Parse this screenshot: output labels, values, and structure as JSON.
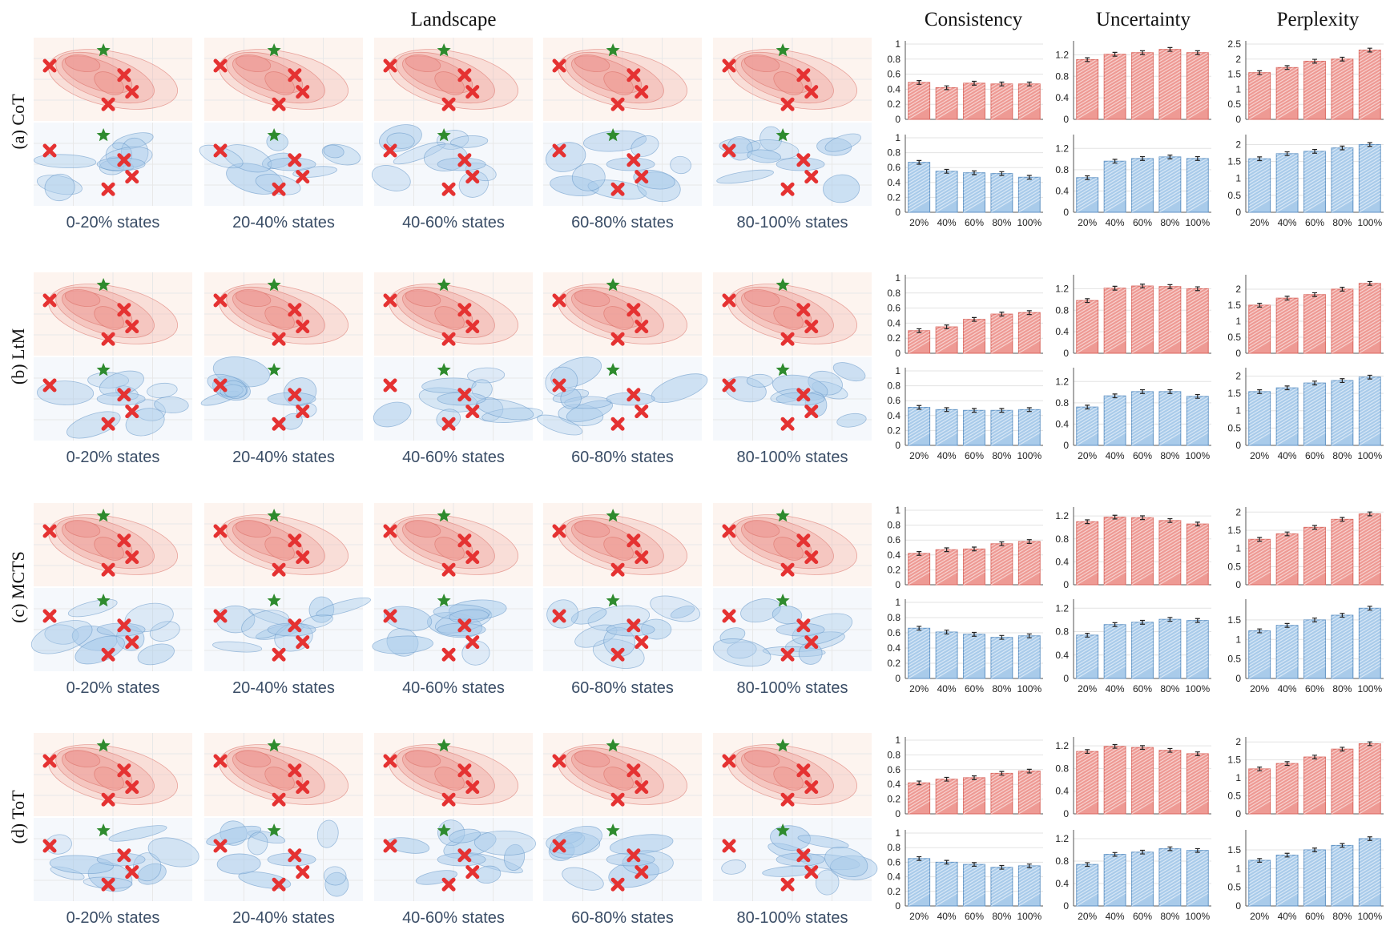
{
  "headers": {
    "landscape": "Landscape",
    "consistency": "Consistency",
    "uncertainty": "Uncertainty",
    "perplexity": "Perplexity"
  },
  "colors": {
    "red_fill": "#ee9a94",
    "red_stroke": "#d9675f",
    "red_bg": "#fdf4ef",
    "blue_fill": "#a9cbea",
    "blue_stroke": "#5f92c4",
    "blue_bg": "#f5f8fc",
    "cross": "#e53232",
    "star": "#2e8b2e",
    "label": "#3a4d66"
  },
  "state_labels": [
    "0-20% states",
    "20-40% states",
    "40-60% states",
    "60-80% states",
    "80-100% states"
  ],
  "x_categories": [
    "20%",
    "40%",
    "60%",
    "80%",
    "100%"
  ],
  "rows": [
    {
      "label": "(a) CoT"
    },
    {
      "label": "(b) LtM"
    },
    {
      "label": "(c) MCTS"
    },
    {
      "label": "(d) ToT"
    }
  ],
  "chart_data": [
    {
      "type": "bar",
      "method": "(a) CoT",
      "metric": "Consistency",
      "series": "red",
      "categories": [
        "20%",
        "40%",
        "60%",
        "80%",
        "100%"
      ],
      "values": [
        0.49,
        0.42,
        0.48,
        0.47,
        0.47
      ],
      "ylim": [
        0,
        1
      ],
      "yticks": [
        "0",
        "0.2",
        "0.4",
        "0.6",
        "0.8",
        "1"
      ],
      "ytick_values": [
        0,
        0.2,
        0.4,
        0.6,
        0.8,
        1
      ],
      "xlabels": false
    },
    {
      "type": "bar",
      "method": "(a) CoT",
      "metric": "Uncertainty",
      "series": "red",
      "categories": [
        "20%",
        "40%",
        "60%",
        "80%",
        "100%"
      ],
      "values": [
        1.11,
        1.21,
        1.24,
        1.3,
        1.24
      ],
      "ylim": [
        0,
        1.4
      ],
      "yticks": [
        "0",
        "0.4",
        "0.8",
        "1.2"
      ],
      "ytick_values": [
        0,
        0.4,
        0.8,
        1.2
      ],
      "xlabels": false
    },
    {
      "type": "bar",
      "method": "(a) CoT",
      "metric": "Perplexity",
      "series": "red",
      "categories": [
        "20%",
        "40%",
        "60%",
        "80%",
        "100%"
      ],
      "values": [
        1.55,
        1.72,
        1.93,
        2.0,
        2.3
      ],
      "ylim": [
        0,
        2.5
      ],
      "yticks": [
        "0",
        "0.5",
        "1",
        "1.5",
        "2",
        "2.5"
      ],
      "ytick_values": [
        0,
        0.5,
        1,
        1.5,
        2,
        2.5
      ],
      "xlabels": false
    },
    {
      "type": "bar",
      "method": "(a) CoT",
      "metric": "Consistency",
      "series": "blue",
      "categories": [
        "20%",
        "40%",
        "60%",
        "80%",
        "100%"
      ],
      "values": [
        0.67,
        0.55,
        0.53,
        0.52,
        0.47
      ],
      "ylim": [
        0,
        1
      ],
      "yticks": [
        "0",
        "0.2",
        "0.4",
        "0.6",
        "0.8",
        "1"
      ],
      "ytick_values": [
        0,
        0.2,
        0.4,
        0.6,
        0.8,
        1
      ],
      "xlabels": true
    },
    {
      "type": "bar",
      "method": "(a) CoT",
      "metric": "Uncertainty",
      "series": "blue",
      "categories": [
        "20%",
        "40%",
        "60%",
        "80%",
        "100%"
      ],
      "values": [
        0.65,
        0.96,
        1.01,
        1.04,
        1.01
      ],
      "ylim": [
        0,
        1.4
      ],
      "yticks": [
        "0",
        "0.4",
        "0.8",
        "1.2"
      ],
      "ytick_values": [
        0,
        0.4,
        0.8,
        1.2
      ],
      "xlabels": true
    },
    {
      "type": "bar",
      "method": "(a) CoT",
      "metric": "Perplexity",
      "series": "blue",
      "categories": [
        "20%",
        "40%",
        "60%",
        "80%",
        "100%"
      ],
      "values": [
        1.58,
        1.73,
        1.8,
        1.9,
        2.0
      ],
      "ylim": [
        0,
        2.2
      ],
      "yticks": [
        "0",
        "0.5",
        "1",
        "1.5",
        "2"
      ],
      "ytick_values": [
        0,
        0.5,
        1,
        1.5,
        2
      ],
      "xlabels": true
    },
    {
      "type": "bar",
      "method": "(b) LtM",
      "metric": "Consistency",
      "series": "red",
      "categories": [
        "20%",
        "40%",
        "60%",
        "80%",
        "100%"
      ],
      "values": [
        0.3,
        0.35,
        0.45,
        0.52,
        0.54
      ],
      "ylim": [
        0,
        1
      ],
      "yticks": [
        "0",
        "0.2",
        "0.4",
        "0.6",
        "0.8",
        "1"
      ],
      "ytick_values": [
        0,
        0.2,
        0.4,
        0.6,
        0.8,
        1
      ],
      "xlabels": false
    },
    {
      "type": "bar",
      "method": "(b) LtM",
      "metric": "Uncertainty",
      "series": "red",
      "categories": [
        "20%",
        "40%",
        "60%",
        "80%",
        "100%"
      ],
      "values": [
        0.98,
        1.21,
        1.25,
        1.24,
        1.2
      ],
      "ylim": [
        0,
        1.4
      ],
      "yticks": [
        "0",
        "0.4",
        "0.8",
        "1.2"
      ],
      "ytick_values": [
        0,
        0.4,
        0.8,
        1.2
      ],
      "xlabels": false
    },
    {
      "type": "bar",
      "method": "(b) LtM",
      "metric": "Perplexity",
      "series": "red",
      "categories": [
        "20%",
        "40%",
        "60%",
        "80%",
        "100%"
      ],
      "values": [
        1.5,
        1.72,
        1.83,
        2.0,
        2.18
      ],
      "ylim": [
        0,
        2.35
      ],
      "yticks": [
        "0",
        "0.5",
        "1",
        "1.5",
        "2"
      ],
      "ytick_values": [
        0,
        0.5,
        1,
        1.5,
        2
      ],
      "xlabels": false
    },
    {
      "type": "bar",
      "method": "(b) LtM",
      "metric": "Consistency",
      "series": "blue",
      "categories": [
        "20%",
        "40%",
        "60%",
        "80%",
        "100%"
      ],
      "values": [
        0.51,
        0.48,
        0.47,
        0.47,
        0.48
      ],
      "ylim": [
        0,
        1
      ],
      "yticks": [
        "0",
        "0.2",
        "0.4",
        "0.6",
        "0.8",
        "1"
      ],
      "ytick_values": [
        0,
        0.2,
        0.4,
        0.6,
        0.8,
        1
      ],
      "xlabels": true
    },
    {
      "type": "bar",
      "method": "(b) LtM",
      "metric": "Uncertainty",
      "series": "blue",
      "categories": [
        "20%",
        "40%",
        "60%",
        "80%",
        "100%"
      ],
      "values": [
        0.72,
        0.93,
        1.01,
        1.01,
        0.92
      ],
      "ylim": [
        0,
        1.4
      ],
      "yticks": [
        "0",
        "0.4",
        "0.8",
        "1.2"
      ],
      "ytick_values": [
        0,
        0.4,
        0.8,
        1.2
      ],
      "xlabels": true
    },
    {
      "type": "bar",
      "method": "(b) LtM",
      "metric": "Perplexity",
      "series": "blue",
      "categories": [
        "20%",
        "40%",
        "60%",
        "80%",
        "100%"
      ],
      "values": [
        1.55,
        1.66,
        1.8,
        1.87,
        1.97
      ],
      "ylim": [
        0,
        2.15
      ],
      "yticks": [
        "0",
        "0.5",
        "1",
        "1.5",
        "2"
      ],
      "ytick_values": [
        0,
        0.5,
        1,
        1.5,
        2
      ],
      "xlabels": true
    },
    {
      "type": "bar",
      "method": "(c) MCTS",
      "metric": "Consistency",
      "series": "red",
      "categories": [
        "20%",
        "40%",
        "60%",
        "80%",
        "100%"
      ],
      "values": [
        0.42,
        0.47,
        0.48,
        0.55,
        0.58
      ],
      "ylim": [
        0,
        1
      ],
      "yticks": [
        "0",
        "0.2",
        "0.4",
        "0.6",
        "0.8",
        "1"
      ],
      "ytick_values": [
        0,
        0.2,
        0.4,
        0.6,
        0.8,
        1
      ],
      "xlabels": false
    },
    {
      "type": "bar",
      "method": "(c) MCTS",
      "metric": "Uncertainty",
      "series": "red",
      "categories": [
        "20%",
        "40%",
        "60%",
        "80%",
        "100%"
      ],
      "values": [
        1.1,
        1.18,
        1.17,
        1.12,
        1.06
      ],
      "ylim": [
        0,
        1.3
      ],
      "yticks": [
        "0",
        "0.4",
        "0.8",
        "1.2"
      ],
      "ytick_values": [
        0,
        0.4,
        0.8,
        1.2
      ],
      "xlabels": false
    },
    {
      "type": "bar",
      "method": "(c) MCTS",
      "metric": "Perplexity",
      "series": "red",
      "categories": [
        "20%",
        "40%",
        "60%",
        "80%",
        "100%"
      ],
      "values": [
        1.25,
        1.4,
        1.58,
        1.8,
        1.95
      ],
      "ylim": [
        0,
        2.05
      ],
      "yticks": [
        "0",
        "0.5",
        "1",
        "1.5",
        "2"
      ],
      "ytick_values": [
        0,
        0.5,
        1,
        1.5,
        2
      ],
      "xlabels": false
    },
    {
      "type": "bar",
      "method": "(c) MCTS",
      "metric": "Consistency",
      "series": "blue",
      "categories": [
        "20%",
        "40%",
        "60%",
        "80%",
        "100%"
      ],
      "values": [
        0.66,
        0.61,
        0.58,
        0.54,
        0.56
      ],
      "ylim": [
        0,
        1
      ],
      "yticks": [
        "0",
        "0.2",
        "0.4",
        "0.6",
        "0.8",
        "1"
      ],
      "ytick_values": [
        0,
        0.2,
        0.4,
        0.6,
        0.8,
        1
      ],
      "xlabels": true
    },
    {
      "type": "bar",
      "method": "(c) MCTS",
      "metric": "Uncertainty",
      "series": "blue",
      "categories": [
        "20%",
        "40%",
        "60%",
        "80%",
        "100%"
      ],
      "values": [
        0.74,
        0.92,
        0.96,
        1.01,
        0.99
      ],
      "ylim": [
        0,
        1.3
      ],
      "yticks": [
        "0",
        "0.4",
        "0.8",
        "1.2"
      ],
      "ytick_values": [
        0,
        0.4,
        0.8,
        1.2
      ],
      "xlabels": true
    },
    {
      "type": "bar",
      "method": "(c) MCTS",
      "metric": "Perplexity",
      "series": "blue",
      "categories": [
        "20%",
        "40%",
        "60%",
        "80%",
        "100%"
      ],
      "values": [
        1.22,
        1.36,
        1.5,
        1.62,
        1.8
      ],
      "ylim": [
        0,
        1.95
      ],
      "yticks": [
        "0",
        "0.5",
        "1",
        "1.5"
      ],
      "ytick_values": [
        0,
        0.5,
        1,
        1.5
      ],
      "xlabels": true
    },
    {
      "type": "bar",
      "method": "(d) ToT",
      "metric": "Consistency",
      "series": "red",
      "categories": [
        "20%",
        "40%",
        "60%",
        "80%",
        "100%"
      ],
      "values": [
        0.42,
        0.47,
        0.49,
        0.55,
        0.58
      ],
      "ylim": [
        0,
        1
      ],
      "yticks": [
        "0",
        "0.2",
        "0.4",
        "0.6",
        "0.8",
        "1"
      ],
      "ytick_values": [
        0,
        0.2,
        0.4,
        0.6,
        0.8,
        1
      ],
      "xlabels": false
    },
    {
      "type": "bar",
      "method": "(d) ToT",
      "metric": "Uncertainty",
      "series": "red",
      "categories": [
        "20%",
        "40%",
        "60%",
        "80%",
        "100%"
      ],
      "values": [
        1.1,
        1.19,
        1.17,
        1.12,
        1.06
      ],
      "ylim": [
        0,
        1.3
      ],
      "yticks": [
        "0",
        "0.4",
        "0.8",
        "1.2"
      ],
      "ytick_values": [
        0,
        0.4,
        0.8,
        1.2
      ],
      "xlabels": false
    },
    {
      "type": "bar",
      "method": "(d) ToT",
      "metric": "Perplexity",
      "series": "red",
      "categories": [
        "20%",
        "40%",
        "60%",
        "80%",
        "100%"
      ],
      "values": [
        1.25,
        1.4,
        1.58,
        1.8,
        1.95
      ],
      "ylim": [
        0,
        2.05
      ],
      "yticks": [
        "0",
        "0.5",
        "1",
        "1.5",
        "2"
      ],
      "ytick_values": [
        0,
        0.5,
        1,
        1.5,
        2
      ],
      "xlabels": false
    },
    {
      "type": "bar",
      "method": "(d) ToT",
      "metric": "Consistency",
      "series": "blue",
      "categories": [
        "20%",
        "40%",
        "60%",
        "80%",
        "100%"
      ],
      "values": [
        0.65,
        0.6,
        0.57,
        0.53,
        0.55
      ],
      "ylim": [
        0,
        1
      ],
      "yticks": [
        "0",
        "0.2",
        "0.4",
        "0.6",
        "0.8",
        "1"
      ],
      "ytick_values": [
        0,
        0.2,
        0.4,
        0.6,
        0.8,
        1
      ],
      "xlabels": true
    },
    {
      "type": "bar",
      "method": "(d) ToT",
      "metric": "Uncertainty",
      "series": "blue",
      "categories": [
        "20%",
        "40%",
        "60%",
        "80%",
        "100%"
      ],
      "values": [
        0.74,
        0.92,
        0.96,
        1.02,
        0.99
      ],
      "ylim": [
        0,
        1.3
      ],
      "yticks": [
        "0",
        "0.4",
        "0.8",
        "1.2"
      ],
      "ytick_values": [
        0,
        0.4,
        0.8,
        1.2
      ],
      "xlabels": true
    },
    {
      "type": "bar",
      "method": "(d) ToT",
      "metric": "Perplexity",
      "series": "blue",
      "categories": [
        "20%",
        "40%",
        "60%",
        "80%",
        "100%"
      ],
      "values": [
        1.22,
        1.36,
        1.5,
        1.62,
        1.8
      ],
      "ylim": [
        0,
        1.95
      ],
      "yticks": [
        "0",
        "0.5",
        "1",
        "1.5"
      ],
      "ytick_values": [
        0,
        0.5,
        1,
        1.5
      ],
      "xlabels": true
    }
  ]
}
